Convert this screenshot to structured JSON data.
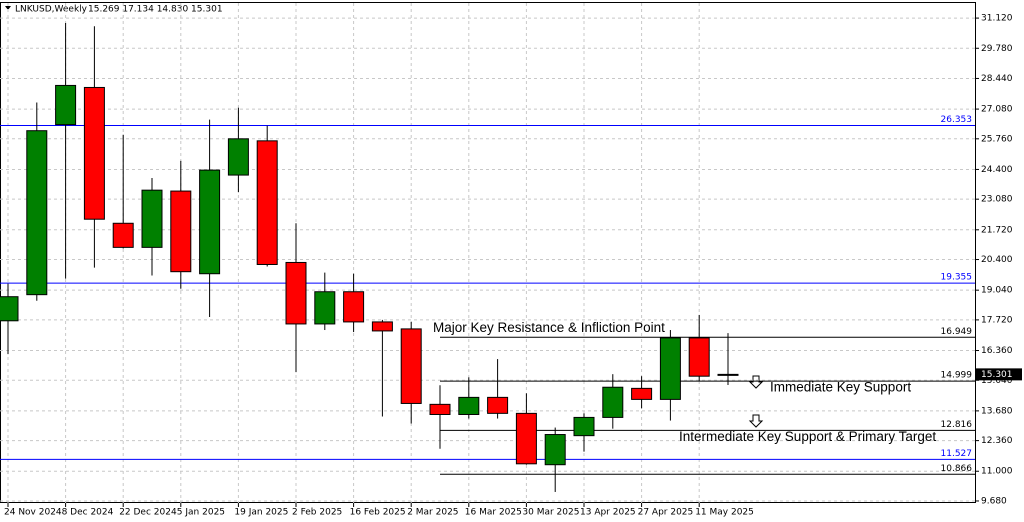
{
  "chart_data": {
    "type": "candlestick",
    "title": "LNKUSD,Weekly",
    "subtitle": "15.269 17.134 14.830 15.301",
    "categories": [
      "24 Nov 2024",
      null,
      "8 Dec 2024",
      null,
      "22 Dec 2024",
      null,
      "5 Jan 2025",
      null,
      "19 Jan 2025",
      null,
      "2 Feb 2025",
      null,
      "16 Feb 2025",
      null,
      "2 Mar 2025",
      null,
      "16 Mar 2025",
      null,
      "30 Mar 2025",
      null,
      "13 Apr 2025",
      null,
      "27 Apr 2025",
      null,
      "11 May 2025",
      null
    ],
    "open": [
      17.68,
      18.84,
      26.39,
      28.04,
      22.01,
      20.94,
      23.44,
      19.77,
      24.15,
      25.67,
      20.27,
      17.54,
      18.97,
      17.63,
      17.32,
      13.97,
      13.52,
      14.28,
      13.57,
      11.29,
      12.58,
      13.39,
      14.68,
      14.19,
      16.92,
      15.269
    ],
    "high": [
      19.33,
      27.37,
      30.9,
      30.76,
      25.94,
      24.02,
      24.78,
      26.61,
      27.14,
      26.34,
      22.01,
      19.82,
      19.77,
      17.72,
      17.63,
      14.82,
      15.17,
      15.98,
      14.46,
      12.94,
      13.57,
      15.31,
      15.22,
      17.27,
      17.94,
      17.134
    ],
    "low": [
      16.2,
      18.57,
      19.55,
      20.04,
      20.89,
      19.69,
      19.1,
      17.85,
      23.39,
      20.09,
      15.4,
      17.27,
      17.18,
      13.43,
      13.12,
      12.0,
      13.34,
      13.34,
      11.29,
      10.08,
      11.87,
      12.89,
      13.79,
      13.25,
      15.0,
      14.83
    ],
    "close": [
      18.75,
      26.12,
      28.13,
      22.19,
      20.94,
      23.48,
      19.86,
      24.37,
      25.76,
      20.18,
      17.54,
      18.97,
      17.63,
      17.23,
      14.01,
      13.52,
      14.28,
      13.57,
      11.33,
      12.63,
      13.39,
      14.73,
      14.19,
      16.92,
      15.22,
      15.301
    ],
    "up_color": "#008000",
    "down_color": "#ff0000",
    "ylim": [
      9.59,
      31.79
    ],
    "yticks": [
      {
        "value": 31.12,
        "label": "31.120"
      },
      {
        "value": 29.78,
        "label": "29.780"
      },
      {
        "value": 28.44,
        "label": "28.440"
      },
      {
        "value": 27.08,
        "label": "27.080"
      },
      {
        "value": 25.76,
        "label": "25.760"
      },
      {
        "value": 24.4,
        "label": "24.400"
      },
      {
        "value": 23.08,
        "label": "23.080"
      },
      {
        "value": 21.72,
        "label": "21.720"
      },
      {
        "value": 20.4,
        "label": "20.400"
      },
      {
        "value": 19.04,
        "label": "19.040"
      },
      {
        "value": 17.72,
        "label": "17.720"
      },
      {
        "value": 16.36,
        "label": "16.360"
      },
      {
        "value": 15.04,
        "label": "15.040"
      },
      {
        "value": 13.68,
        "label": "13.680"
      },
      {
        "value": 12.36,
        "label": "12.360"
      },
      {
        "value": 11,
        "label": "11.000"
      },
      {
        "value": 9.68,
        "label": "9.680"
      }
    ],
    "grid": true,
    "levels": [
      {
        "value": 26.353,
        "label": "26.353",
        "color": "#0000ff"
      },
      {
        "value": 19.355,
        "label": "19.355",
        "color": "#0000ff"
      },
      {
        "value": 11.527,
        "label": "11.527",
        "color": "#0000ff"
      },
      {
        "value": 16.949,
        "label": "16.949",
        "color": "#000000"
      },
      {
        "value": 14.999,
        "label": "14.999",
        "color": "#000000"
      },
      {
        "value": 12.816,
        "label": "12.816",
        "color": "#000000"
      },
      {
        "value": 10.866,
        "label": "10.866",
        "color": "#000000"
      }
    ],
    "current_price": {
      "value": 15.301,
      "label": "15.301"
    },
    "annotations": [
      {
        "text": "Major Key Resistance & Infliction Point",
        "value": 16.949
      },
      {
        "text": "Immediate Key Support",
        "value": 14.999
      },
      {
        "text": "Intermediate Key Support & Primary Target",
        "value": 12.816
      }
    ]
  }
}
